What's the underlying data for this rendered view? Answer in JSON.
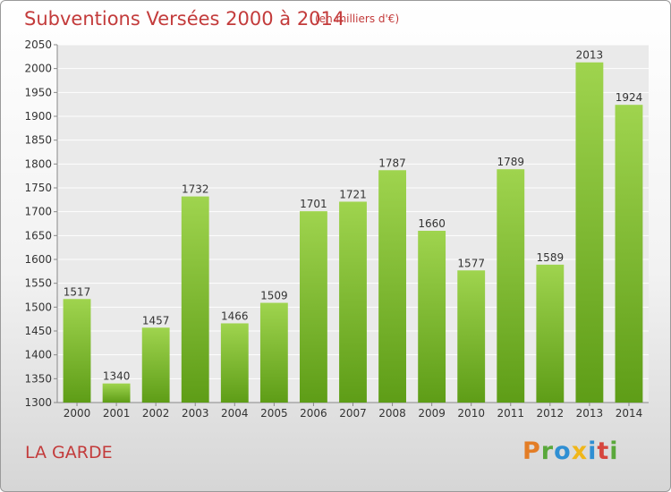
{
  "header": {
    "title": "Subventions Versées 2000 à 2014",
    "subtitle": "(en milliers d'€)"
  },
  "footer": {
    "commune": "LA GARDE",
    "logo_text": "Proxiti"
  },
  "colors": {
    "bar_top": "#9fd44e",
    "bar_bottom": "#5e9d17",
    "title": "#c33b3b",
    "plot_bg": "#eaeaea",
    "grid": "#ffffff"
  },
  "chart_data": {
    "type": "bar",
    "title": "Subventions Versées 2000 à 2014",
    "subtitle": "(en milliers d'€)",
    "xlabel": "",
    "ylabel": "",
    "categories": [
      "2000",
      "2001",
      "2002",
      "2003",
      "2004",
      "2005",
      "2006",
      "2007",
      "2008",
      "2009",
      "2010",
      "2011",
      "2012",
      "2013",
      "2014"
    ],
    "values": [
      1517,
      1340,
      1457,
      1732,
      1466,
      1509,
      1701,
      1721,
      1787,
      1660,
      1577,
      1789,
      1589,
      2013,
      1924
    ],
    "ylim": [
      1300,
      2050
    ],
    "yticks": [
      1300,
      1350,
      1400,
      1450,
      1500,
      1550,
      1600,
      1650,
      1700,
      1750,
      1800,
      1850,
      1900,
      1950,
      2000,
      2050
    ],
    "grid": true,
    "legend": "none",
    "data_labels": true
  }
}
